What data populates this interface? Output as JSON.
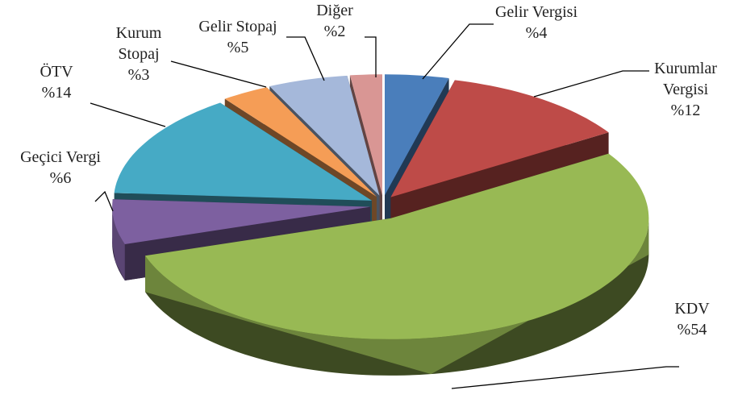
{
  "chart_data": {
    "type": "pie",
    "categories": [
      "Gelir Vergisi",
      "Kurumlar Vergisi",
      "KDV",
      "Geçici Vergi",
      "ÖTV",
      "Kurum Stopaj",
      "Gelir Stopaj",
      "Diğer"
    ],
    "values": [
      4,
      12,
      54,
      6,
      14,
      3,
      5,
      2
    ],
    "value_labels": [
      "%4",
      "%12",
      "%54",
      "%6",
      "%14",
      "%3",
      "%5",
      "%2"
    ],
    "colors": [
      "#4a7ebb",
      "#be4b48",
      "#98b954",
      "#7d60a0",
      "#46aac5",
      "#f59d56",
      "#a5b8da",
      "#d99694"
    ]
  }
}
